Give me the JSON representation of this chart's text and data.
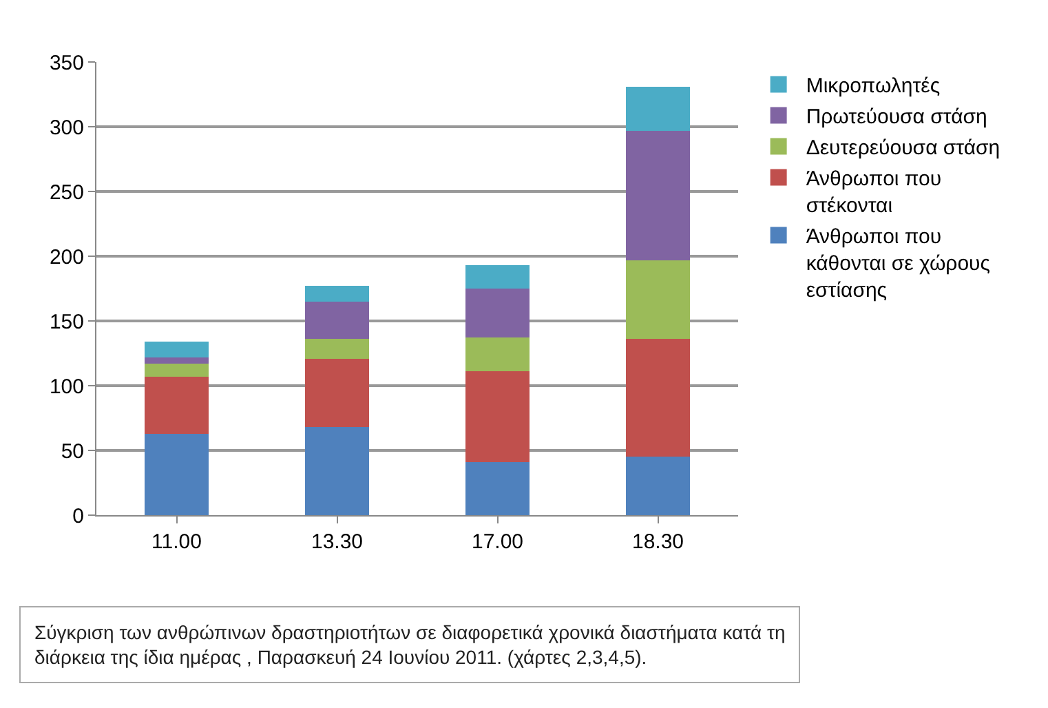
{
  "chart_data": {
    "type": "bar",
    "stacked": true,
    "categories": [
      "11.00",
      "13.30",
      "17.00",
      "18.30"
    ],
    "series": [
      {
        "name": "Άνθρωποι που κάθονται σε χώρους εστίασης",
        "color": "#4f81bd",
        "values": [
          63,
          68,
          41,
          45
        ]
      },
      {
        "name": "Άνθρωποι που στέκονται",
        "color": "#c0504d",
        "values": [
          44,
          53,
          70,
          91
        ]
      },
      {
        "name": "Δευτερεύουσα στάση",
        "color": "#9bbb59",
        "values": [
          10,
          15,
          26,
          61
        ]
      },
      {
        "name": "Πρωτεύουσα στάση",
        "color": "#8064a2",
        "values": [
          5,
          29,
          38,
          100
        ]
      },
      {
        "name": "Μικροπωλητές",
        "color": "#4bacc6",
        "values": [
          12,
          12,
          18,
          34
        ]
      }
    ],
    "ylim": [
      0,
      350
    ],
    "yticks": [
      0,
      50,
      100,
      150,
      200,
      250,
      300,
      350
    ],
    "grid": "y",
    "legend": "right",
    "annotations": [
      "Σύγκριση των ανθρώπινων δραστηριοτήτων σε διαφορετικά χρονικά διαστήματα κατά τη διάρκεια της ίδια ημέρας , Παρασκευή 24 Ιουνίου 2011. (χάρτες 2,3,4,5)."
    ]
  }
}
